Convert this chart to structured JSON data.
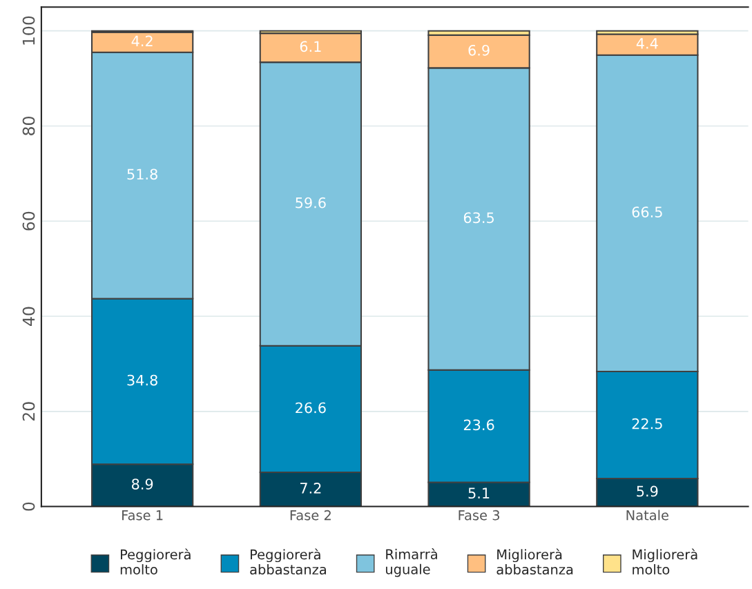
{
  "chart_data": {
    "type": "bar",
    "stacked": true,
    "categories": [
      "Fase 1",
      "Fase 2",
      "Fase 3",
      "Natale"
    ],
    "series": [
      {
        "name": "Peggiorerà\nmolto",
        "color": "#00465e",
        "values": [
          8.9,
          7.2,
          5.1,
          5.9
        ],
        "value_labels": [
          "8.9",
          "7.2",
          "5.1",
          "5.9"
        ]
      },
      {
        "name": "Peggiorerà\nabbastanza",
        "color": "#008bbc",
        "values": [
          34.8,
          26.6,
          23.6,
          22.5
        ],
        "value_labels": [
          "34.8",
          "26.6",
          "23.6",
          "22.5"
        ]
      },
      {
        "name": "Rimarrà\nuguale",
        "color": "#7fc4de",
        "values": [
          51.8,
          59.6,
          63.5,
          66.5
        ],
        "value_labels": [
          "51.8",
          "59.6",
          "63.5",
          "66.5"
        ]
      },
      {
        "name": "Migliorerà\nabbastanza",
        "color": "#ffbf80",
        "values": [
          4.2,
          6.1,
          6.9,
          4.4
        ],
        "value_labels": [
          "4.2",
          "6.1",
          "6.9",
          "4.4"
        ]
      },
      {
        "name": "Migliorerà\nmolto",
        "color": "#ffe28a",
        "values": [
          0.3,
          0.5,
          0.9,
          0.7
        ]
      }
    ],
    "ylim": [
      0,
      105
    ],
    "yticks": [
      0,
      20,
      40,
      60,
      80,
      100
    ],
    "grid": "y",
    "legend": "bottom"
  }
}
